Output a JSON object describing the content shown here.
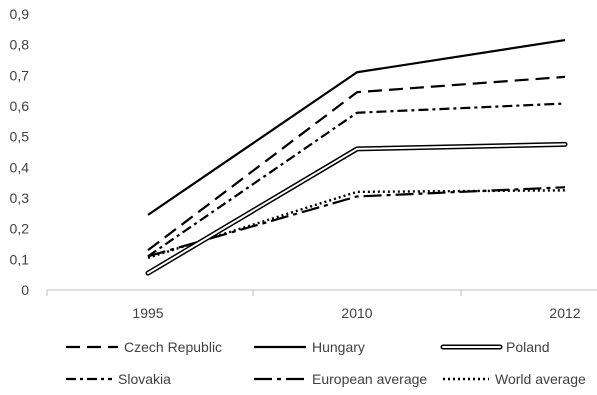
{
  "chart_data": {
    "type": "line",
    "categories": [
      "1995",
      "2010",
      "2012"
    ],
    "ylim": [
      0,
      0.9
    ],
    "yticks": [
      "0",
      "0,1",
      "0,2",
      "0,3",
      "0,4",
      "0,5",
      "0,6",
      "0,7",
      "0,8",
      "0,9"
    ],
    "xlabel": "",
    "ylabel": "",
    "title": "",
    "grid": false,
    "legend_position": "bottom",
    "series": [
      {
        "name": "Czech Republic",
        "values": [
          0.13,
          0.645,
          0.695
        ],
        "style": "long-dash",
        "color": "#000000"
      },
      {
        "name": "Hungary",
        "values": [
          0.245,
          0.71,
          0.815
        ],
        "style": "solid",
        "color": "#000000"
      },
      {
        "name": "Poland",
        "values": [
          0.055,
          0.46,
          0.475
        ],
        "style": "double",
        "color": "#000000"
      },
      {
        "name": "Slovakia",
        "values": [
          0.11,
          0.578,
          0.608
        ],
        "style": "dash-dot",
        "color": "#000000"
      },
      {
        "name": "European average",
        "values": [
          0.11,
          0.305,
          0.335
        ],
        "style": "long-dash-dot",
        "color": "#000000"
      },
      {
        "name": "World average",
        "values": [
          0.105,
          0.32,
          0.325
        ],
        "style": "dotted",
        "color": "#000000"
      }
    ]
  }
}
